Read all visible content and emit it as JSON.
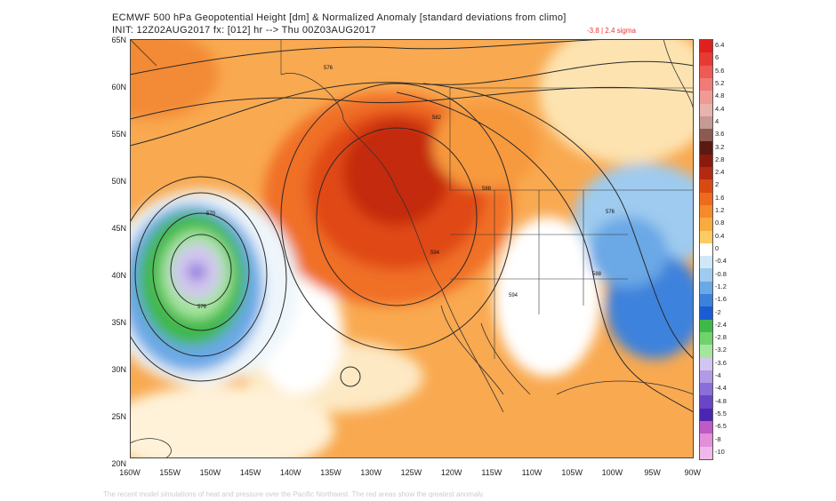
{
  "header": {
    "title_line1": "ECMWF 500 hPa Geopotential Height [dm] & Normalized Anomaly [standard deviations from climo]",
    "title_line2": "INIT: 12Z02AUG2017 fx: [012] hr --> Thu 00Z03AUG2017",
    "anomaly_range": "-3.8 | 2.4 sigma"
  },
  "axes": {
    "lat_labels": [
      "65N",
      "60N",
      "55N",
      "50N",
      "45N",
      "40N",
      "35N",
      "30N",
      "25N",
      "20N"
    ],
    "lon_labels": [
      "160W",
      "155W",
      "150W",
      "145W",
      "140W",
      "135W",
      "130W",
      "125W",
      "120W",
      "115W",
      "110W",
      "105W",
      "100W",
      "95W",
      "90W"
    ]
  },
  "contours": {
    "labels": [
      "576",
      "582",
      "588",
      "576",
      "570",
      "576",
      "594",
      "594",
      "588"
    ]
  },
  "colorbar": {
    "labels": [
      "6.4",
      "6",
      "5.6",
      "5.2",
      "4.8",
      "4.4",
      "4",
      "3.6",
      "3.2",
      "2.8",
      "2.4",
      "2",
      "1.6",
      "1.2",
      "0.8",
      "0.4",
      "0",
      "-0.4",
      "-0.8",
      "-1.2",
      "-1.6",
      "-2",
      "-2.4",
      "-2.8",
      "-3.2",
      "-3.6",
      "-4",
      "-4.4",
      "-4.8",
      "-5.5",
      "-6.5",
      "-8",
      "-10"
    ],
    "colors": [
      "#e0201c",
      "#e83a35",
      "#ef5a55",
      "#f07a76",
      "#f09a95",
      "#e8b2ad",
      "#c49a92",
      "#8b5a52",
      "#5a1a10",
      "#8b1a0e",
      "#b32a10",
      "#d84a12",
      "#ef6a1c",
      "#f58a2a",
      "#f9ab3e",
      "#fccb62",
      "#ffffff",
      "#cfe7f7",
      "#9ecbef",
      "#6aa8e6",
      "#3c82dc",
      "#1a5cd2",
      "#3fb84a",
      "#6ed36b",
      "#a5e69e",
      "#d2c6f0",
      "#b29ae6",
      "#8a6ed9",
      "#6a46c6",
      "#4a27b0",
      "#c05ac4",
      "#e290da",
      "#f0b8ea"
    ]
  },
  "caption": "The recent model simulations of heat and pressure over the Pacific Northwest. The red areas show the greatest anomaly."
}
